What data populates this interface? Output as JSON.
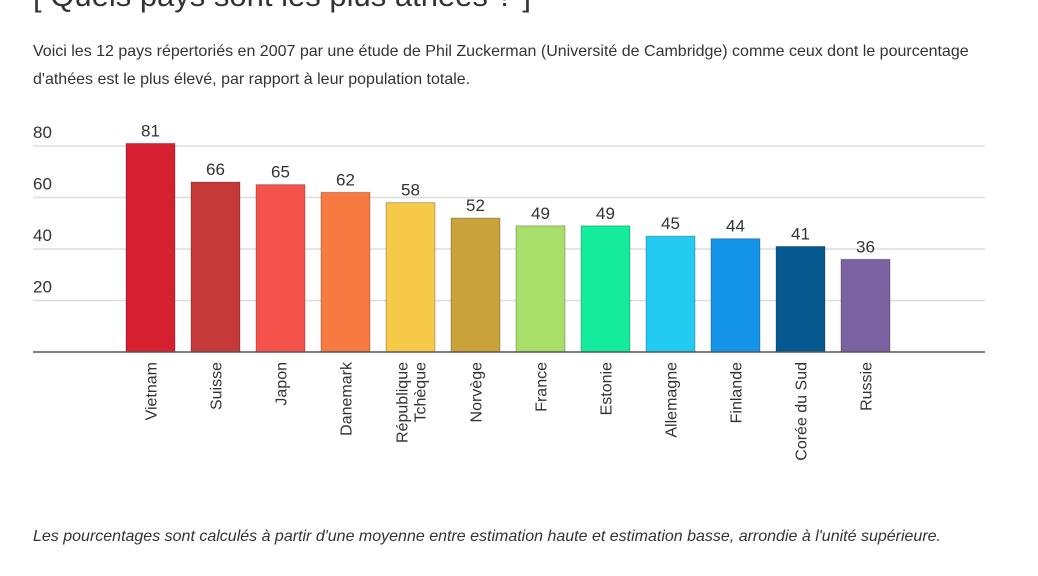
{
  "title": "[ Quels pays sont les plus athées ? ]",
  "intro": "Voici les 12 pays répertoriés en 2007 par une étude de Phil Zuckerman (Université de Cambridge) comme ceux dont le pourcentage d'athées est le plus élevé, par rapport à leur population totale.",
  "note": "Les pourcentages sont calculés à partir d'une moyenne entre estimation haute et estimation basse, arrondie à l'unité supérieure.",
  "chart_data": {
    "type": "bar",
    "title": "",
    "xlabel": "",
    "ylabel": "",
    "ylim": [
      0,
      80
    ],
    "yticks": [
      20,
      40,
      60,
      80
    ],
    "grid": true,
    "categories": [
      "Vietnam",
      "Suisse",
      "Japon",
      "Danemark",
      "République Tchèque",
      "Norvège",
      "France",
      "Estonie",
      "Allemagne",
      "Finlande",
      "Corée du Sud",
      "Russie"
    ],
    "category_lines": [
      [
        "Vietnam"
      ],
      [
        "Suisse"
      ],
      [
        "Japon"
      ],
      [
        "Danemark"
      ],
      [
        "République",
        "Tchèque"
      ],
      [
        "Norvège"
      ],
      [
        "France"
      ],
      [
        "Estonie"
      ],
      [
        "Allemagne"
      ],
      [
        "Finlande"
      ],
      [
        "Corée du Sud"
      ],
      [
        "Russie"
      ]
    ],
    "values": [
      81,
      66,
      65,
      62,
      58,
      52,
      49,
      49,
      45,
      44,
      41,
      36
    ],
    "colors": [
      "#d61f2f",
      "#c53a38",
      "#f5524c",
      "#f77b40",
      "#f7c948",
      "#c9a33a",
      "#a8de6a",
      "#14ec9c",
      "#23cbf0",
      "#1494e8",
      "#06598f",
      "#7a63a0"
    ]
  }
}
